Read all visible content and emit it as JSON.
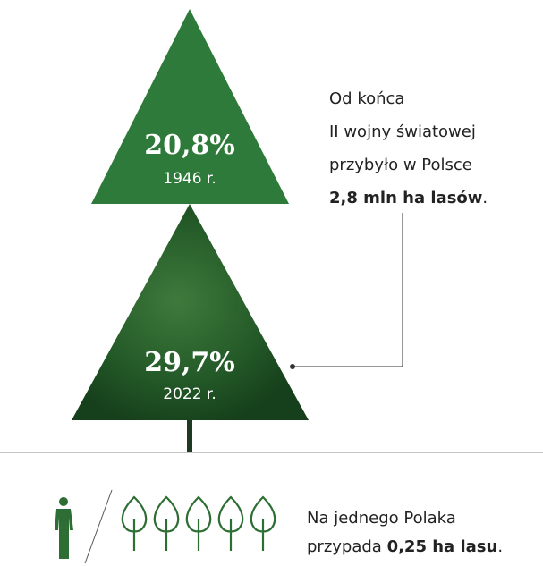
{
  "top": {
    "value": "20,8%",
    "year": "1946 r."
  },
  "bottom": {
    "value": "29,7%",
    "year": "2022 r."
  },
  "note": {
    "lines": [
      "Od końca",
      "II wojny światowej",
      "przybyło w Polsce"
    ],
    "bold": "2,8 mln ha lasów",
    "end": "."
  },
  "per_person": {
    "line1": "Na jednego Polaka",
    "prefix": "przypada ",
    "bold": "0,25 ha lasu",
    "end": "."
  }
}
